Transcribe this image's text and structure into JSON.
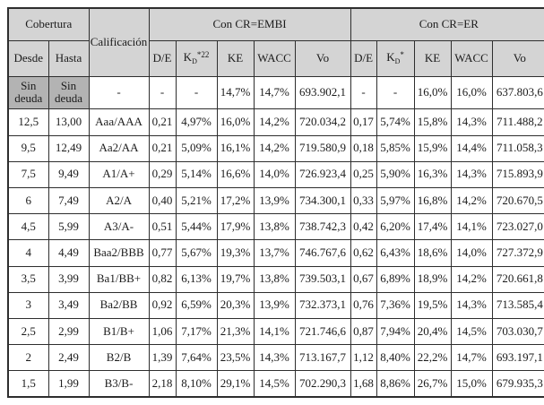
{
  "table": {
    "header": {
      "cobertura": "Cobertura",
      "calificacion": "Calificación",
      "group_embi": "Con CR=EMBI",
      "group_er": "Con CR=ER",
      "desde": "Desde",
      "hasta": "Hasta",
      "embi_cols": {
        "de": "D/E",
        "kd_base": "K",
        "kd_sub": "D",
        "kd_sup": "*22",
        "ke": "KE",
        "wacc": "WACC",
        "vo": "Vo"
      },
      "er_cols": {
        "de": "D/E",
        "kd_base": "K",
        "kd_sub": "D",
        "kd_sup": "*",
        "ke": "KE",
        "wacc": "WACC",
        "vo": "Vo"
      }
    },
    "rows": [
      {
        "desde": "Sin deuda",
        "hasta": "Sin deuda",
        "calificacion": "-",
        "embi": [
          "-",
          "-",
          "14,7%",
          "14,7%",
          "693.902,1"
        ],
        "er": [
          "-",
          "-",
          "16,0%",
          "16,0%",
          "637.803,6"
        ],
        "shaded": true
      },
      {
        "desde": "12,5",
        "hasta": "13,00",
        "calificacion": "Aaa/AAA",
        "embi": [
          "0,21",
          "4,97%",
          "16,0%",
          "14,2%",
          "720.034,2"
        ],
        "er": [
          "0,17",
          "5,74%",
          "15,8%",
          "14,3%",
          "711.488,2"
        ],
        "shaded": false
      },
      {
        "desde": "9,5",
        "hasta": "12,49",
        "calificacion": "Aa2/AA",
        "embi": [
          "0,21",
          "5,09%",
          "16,1%",
          "14,2%",
          "719.580,9"
        ],
        "er": [
          "0,18",
          "5,85%",
          "15,9%",
          "14,4%",
          "711.058,3"
        ],
        "shaded": false
      },
      {
        "desde": "7,5",
        "hasta": "9,49",
        "calificacion": "A1/A+",
        "embi": [
          "0,29",
          "5,14%",
          "16,6%",
          "14,0%",
          "726.923,4"
        ],
        "er": [
          "0,25",
          "5,90%",
          "16,3%",
          "14,3%",
          "715.893,9"
        ],
        "shaded": false
      },
      {
        "desde": "6",
        "hasta": "7,49",
        "calificacion": "A2/A",
        "embi": [
          "0,40",
          "5,21%",
          "17,2%",
          "13,9%",
          "734.300,1"
        ],
        "er": [
          "0,33",
          "5,97%",
          "16,8%",
          "14,2%",
          "720.670,5"
        ],
        "shaded": false
      },
      {
        "desde": "4,5",
        "hasta": "5,99",
        "calificacion": "A3/A-",
        "embi": [
          "0,51",
          "5,44%",
          "17,9%",
          "13,8%",
          "738.742,3"
        ],
        "er": [
          "0,42",
          "6,20%",
          "17,4%",
          "14,1%",
          "723.027,0"
        ],
        "shaded": false
      },
      {
        "desde": "4",
        "hasta": "4,49",
        "calificacion": "Baa2/BBB",
        "embi": [
          "0,77",
          "5,67%",
          "19,3%",
          "13,7%",
          "746.767,6"
        ],
        "er": [
          "0,62",
          "6,43%",
          "18,6%",
          "14,0%",
          "727.372,9"
        ],
        "shaded": false
      },
      {
        "desde": "3,5",
        "hasta": "3,99",
        "calificacion": "Ba1/BB+",
        "embi": [
          "0,82",
          "6,13%",
          "19,7%",
          "13,8%",
          "739.503,1"
        ],
        "er": [
          "0,67",
          "6,89%",
          "18,9%",
          "14,2%",
          "720.661,8"
        ],
        "shaded": false
      },
      {
        "desde": "3",
        "hasta": "3,49",
        "calificacion": "Ba2/BB",
        "embi": [
          "0,92",
          "6,59%",
          "20,3%",
          "13,9%",
          "732.373,1"
        ],
        "er": [
          "0,76",
          "7,36%",
          "19,5%",
          "14,3%",
          "713.585,4"
        ],
        "shaded": false
      },
      {
        "desde": "2,5",
        "hasta": "2,99",
        "calificacion": "B1/B+",
        "embi": [
          "1,06",
          "7,17%",
          "21,3%",
          "14,1%",
          "721.746,6"
        ],
        "er": [
          "0,87",
          "7,94%",
          "20,4%",
          "14,5%",
          "703.030,7"
        ],
        "shaded": false
      },
      {
        "desde": "2",
        "hasta": "2,49",
        "calificacion": "B2/B",
        "embi": [
          "1,39",
          "7,64%",
          "23,5%",
          "14,3%",
          "713.167,7"
        ],
        "er": [
          "1,12",
          "8,40%",
          "22,2%",
          "14,7%",
          "693.197,1"
        ],
        "shaded": false
      },
      {
        "desde": "1,5",
        "hasta": "1,99",
        "calificacion": "B3/B-",
        "embi": [
          "2,18",
          "8,10%",
          "29,1%",
          "14,5%",
          "702.290,3"
        ],
        "er": [
          "1,68",
          "8,86%",
          "26,7%",
          "15,0%",
          "679.935,3"
        ],
        "shaded": false
      }
    ]
  },
  "colors": {
    "header_bg": "#d4d4d4",
    "shaded_cell_bg": "#b3b3b3",
    "border": "#2e2e2e",
    "text": "#1b1b1b"
  }
}
